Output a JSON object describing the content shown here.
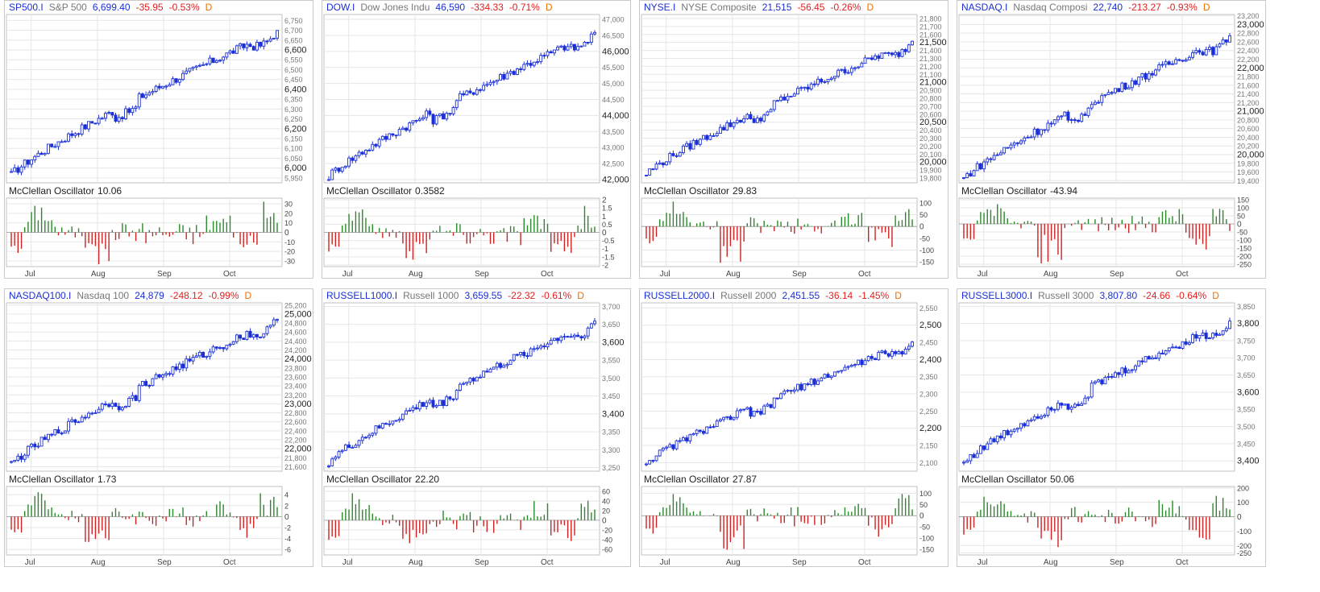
{
  "colors": {
    "up": "#1a2fd6",
    "osc_pos": "#2a8a2a",
    "osc_neg": "#cc2222",
    "grid": "#e6e6e6",
    "axis": "#9a9a9a"
  },
  "osc_label": "McClellan Oscillator",
  "months": [
    "Jul",
    "Aug",
    "Sep",
    "Oct"
  ],
  "chart_data": [
    {
      "type": "candlestick",
      "symbol": "SP500.I",
      "name": "S&P 500",
      "price": "6,699.40",
      "change": "-35.95",
      "pct": "-0.53%",
      "period": "D",
      "ylim": [
        5925,
        6780
      ],
      "start": 5965,
      "end": 6699,
      "yticks": [
        "6,750",
        "6,700",
        "6,650",
        "6,600",
        "6,550",
        "6,500",
        "6,450",
        "6,400",
        "6,350",
        "6,300",
        "6,250",
        "6,200",
        "6,150",
        "6,100",
        "6,050",
        "6,000",
        "5,950"
      ],
      "major": [
        "6,600",
        "6,400",
        "6,200",
        "6,000"
      ],
      "osc_value": "10.06",
      "osc_ticks": [
        "30",
        "20",
        "10",
        "0",
        "-10",
        "-20",
        "-30"
      ],
      "osc_lim": [
        -36,
        36
      ]
    },
    {
      "type": "candlestick",
      "symbol": "DOW.I",
      "name": "Dow Jones Indu",
      "price": "46,590",
      "change": "-334.33",
      "pct": "-0.71%",
      "period": "D",
      "ylim": [
        41900,
        47150
      ],
      "start": 42100,
      "end": 46590,
      "yticks": [
        "47,000",
        "46,500",
        "46,000",
        "45,500",
        "45,000",
        "44,500",
        "44,000",
        "43,500",
        "43,000",
        "42,500",
        "42,000"
      ],
      "major": [
        "46,000",
        "44,000",
        "42,000"
      ],
      "osc_value": "0.3582",
      "osc_ticks": [
        "2",
        "1.5",
        "1",
        "0.5",
        "0",
        "-0.5",
        "-1",
        "-1.5",
        "-2"
      ],
      "osc_lim": [
        -2.1,
        2.1
      ]
    },
    {
      "type": "candlestick",
      "symbol": "NYSE.I",
      "name": "NYSE Composite",
      "price": "21,515",
      "change": "-56.45",
      "pct": "-0.26%",
      "period": "D",
      "ylim": [
        19740,
        21850
      ],
      "start": 19850,
      "end": 21515,
      "yticks": [
        "21,800",
        "21,700",
        "21,600",
        "21,500",
        "21,400",
        "21,300",
        "21,200",
        "21,100",
        "21,000",
        "20,900",
        "20,800",
        "20,700",
        "20,600",
        "20,500",
        "20,400",
        "20,300",
        "20,200",
        "20,100",
        "20,000",
        "19,900",
        "19,800"
      ],
      "major": [
        "21,500",
        "21,000",
        "20,500",
        "20,000"
      ],
      "osc_value": "29.83",
      "osc_ticks": [
        "100",
        "50",
        "0",
        "-50",
        "-100",
        "-150"
      ],
      "osc_lim": [
        -170,
        120
      ]
    },
    {
      "type": "candlestick",
      "symbol": "NASDAQ.I",
      "name": "Nasdaq Composi",
      "price": "22,740",
      "change": "-213.27",
      "pct": "-0.93%",
      "period": "D",
      "ylim": [
        19350,
        23230
      ],
      "start": 19450,
      "end": 22740,
      "yticks": [
        "23,200",
        "23,000",
        "22,800",
        "22,600",
        "22,400",
        "22,200",
        "22,000",
        "21,800",
        "21,600",
        "21,400",
        "21,200",
        "21,000",
        "20,800",
        "20,600",
        "20,400",
        "20,200",
        "20,000",
        "19,800",
        "19,600",
        "19,400"
      ],
      "major": [
        "23,000",
        "22,000",
        "21,000",
        "20,000"
      ],
      "osc_value": "-43.94",
      "osc_ticks": [
        "150",
        "100",
        "50",
        "0",
        "-50",
        "-100",
        "-150",
        "-200",
        "-250"
      ],
      "osc_lim": [
        -265,
        160
      ]
    },
    {
      "type": "candlestick",
      "symbol": "NASDAQ100.I",
      "name": "Nasdaq 100",
      "price": "24,879",
      "change": "-248.12",
      "pct": "-0.99%",
      "period": "D",
      "ylim": [
        21500,
        25250
      ],
      "start": 21650,
      "end": 24879,
      "yticks": [
        "25,200",
        "25,000",
        "24,800",
        "24,600",
        "24,400",
        "24,200",
        "24,000",
        "23,800",
        "23,600",
        "23,400",
        "23,200",
        "23,000",
        "22,800",
        "22,600",
        "22,400",
        "22,200",
        "22,000",
        "21,800",
        "21,600"
      ],
      "major": [
        "25,000",
        "24,000",
        "23,000",
        "22,000"
      ],
      "osc_value": "1.73",
      "osc_ticks": [
        "4",
        "2",
        "0",
        "-2",
        "-4",
        "-6"
      ],
      "osc_lim": [
        -7,
        5.5
      ]
    },
    {
      "type": "candlestick",
      "symbol": "RUSSELL1000.I",
      "name": "Russell 1000",
      "price": "3,659.55",
      "change": "-22.32",
      "pct": "-0.61%",
      "period": "D",
      "ylim": [
        3240,
        3710
      ],
      "start": 3265,
      "end": 3659,
      "yticks": [
        "3,700",
        "3,650",
        "3,600",
        "3,550",
        "3,500",
        "3,450",
        "3,400",
        "3,350",
        "3,300",
        "3,250"
      ],
      "major": [
        "3,600",
        "3,400"
      ],
      "osc_value": "22.20",
      "osc_ticks": [
        "60",
        "40",
        "20",
        "0",
        "-20",
        "-40",
        "-60"
      ],
      "osc_lim": [
        -72,
        70
      ]
    },
    {
      "type": "candlestick",
      "symbol": "RUSSELL2000.I",
      "name": "Russell 2000",
      "price": "2,451.55",
      "change": "-36.14",
      "pct": "-1.45%",
      "period": "D",
      "ylim": [
        2075,
        2565
      ],
      "start": 2100,
      "end": 2451,
      "yticks": [
        "2,550",
        "2,500",
        "2,450",
        "2,400",
        "2,350",
        "2,300",
        "2,250",
        "2,200",
        "2,150",
        "2,100"
      ],
      "major": [
        "2,500",
        "2,400",
        "2,200"
      ],
      "osc_value": "27.87",
      "osc_ticks": [
        "100",
        "50",
        "0",
        "-50",
        "-100",
        "-150"
      ],
      "osc_lim": [
        -175,
        130
      ]
    },
    {
      "type": "candlestick",
      "symbol": "RUSSELL3000.I",
      "name": "Russell 3000",
      "price": "3,807.80",
      "change": "-24.66",
      "pct": "-0.64%",
      "period": "D",
      "ylim": [
        3370,
        3860
      ],
      "start": 3395,
      "end": 3807,
      "yticks": [
        "3,850",
        "3,800",
        "3,750",
        "3,700",
        "3,650",
        "3,600",
        "3,550",
        "3,500",
        "3,450",
        "3,400"
      ],
      "major": [
        "3,800",
        "3,600",
        "3,400"
      ],
      "osc_value": "50.06",
      "osc_ticks": [
        "200",
        "100",
        "0",
        "-100",
        "-200",
        "-250"
      ],
      "osc_lim": [
        -265,
        210
      ]
    }
  ]
}
